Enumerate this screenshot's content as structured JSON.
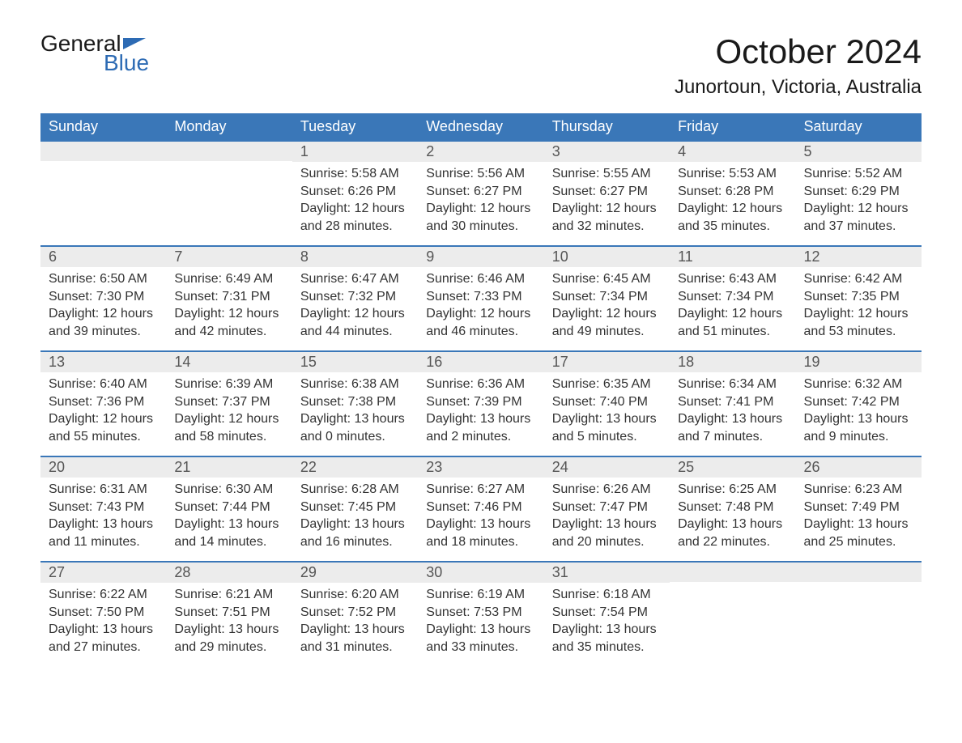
{
  "logo": {
    "line1": "General",
    "line2": "Blue"
  },
  "title": "October 2024",
  "location": "Junortoun, Victoria, Australia",
  "colors": {
    "header_bg": "#3a77b8",
    "header_text": "#ffffff",
    "daynum_bg": "#ececec",
    "row_border": "#3a77b8",
    "body_text": "#333333",
    "logo_blue": "#2d6bb4"
  },
  "weekdays": [
    "Sunday",
    "Monday",
    "Tuesday",
    "Wednesday",
    "Thursday",
    "Friday",
    "Saturday"
  ],
  "leading_blanks": 2,
  "days": [
    {
      "n": 1,
      "sunrise": "5:58 AM",
      "sunset": "6:26 PM",
      "daylight": "12 hours and 28 minutes."
    },
    {
      "n": 2,
      "sunrise": "5:56 AM",
      "sunset": "6:27 PM",
      "daylight": "12 hours and 30 minutes."
    },
    {
      "n": 3,
      "sunrise": "5:55 AM",
      "sunset": "6:27 PM",
      "daylight": "12 hours and 32 minutes."
    },
    {
      "n": 4,
      "sunrise": "5:53 AM",
      "sunset": "6:28 PM",
      "daylight": "12 hours and 35 minutes."
    },
    {
      "n": 5,
      "sunrise": "5:52 AM",
      "sunset": "6:29 PM",
      "daylight": "12 hours and 37 minutes."
    },
    {
      "n": 6,
      "sunrise": "6:50 AM",
      "sunset": "7:30 PM",
      "daylight": "12 hours and 39 minutes."
    },
    {
      "n": 7,
      "sunrise": "6:49 AM",
      "sunset": "7:31 PM",
      "daylight": "12 hours and 42 minutes."
    },
    {
      "n": 8,
      "sunrise": "6:47 AM",
      "sunset": "7:32 PM",
      "daylight": "12 hours and 44 minutes."
    },
    {
      "n": 9,
      "sunrise": "6:46 AM",
      "sunset": "7:33 PM",
      "daylight": "12 hours and 46 minutes."
    },
    {
      "n": 10,
      "sunrise": "6:45 AM",
      "sunset": "7:34 PM",
      "daylight": "12 hours and 49 minutes."
    },
    {
      "n": 11,
      "sunrise": "6:43 AM",
      "sunset": "7:34 PM",
      "daylight": "12 hours and 51 minutes."
    },
    {
      "n": 12,
      "sunrise": "6:42 AM",
      "sunset": "7:35 PM",
      "daylight": "12 hours and 53 minutes."
    },
    {
      "n": 13,
      "sunrise": "6:40 AM",
      "sunset": "7:36 PM",
      "daylight": "12 hours and 55 minutes."
    },
    {
      "n": 14,
      "sunrise": "6:39 AM",
      "sunset": "7:37 PM",
      "daylight": "12 hours and 58 minutes."
    },
    {
      "n": 15,
      "sunrise": "6:38 AM",
      "sunset": "7:38 PM",
      "daylight": "13 hours and 0 minutes."
    },
    {
      "n": 16,
      "sunrise": "6:36 AM",
      "sunset": "7:39 PM",
      "daylight": "13 hours and 2 minutes."
    },
    {
      "n": 17,
      "sunrise": "6:35 AM",
      "sunset": "7:40 PM",
      "daylight": "13 hours and 5 minutes."
    },
    {
      "n": 18,
      "sunrise": "6:34 AM",
      "sunset": "7:41 PM",
      "daylight": "13 hours and 7 minutes."
    },
    {
      "n": 19,
      "sunrise": "6:32 AM",
      "sunset": "7:42 PM",
      "daylight": "13 hours and 9 minutes."
    },
    {
      "n": 20,
      "sunrise": "6:31 AM",
      "sunset": "7:43 PM",
      "daylight": "13 hours and 11 minutes."
    },
    {
      "n": 21,
      "sunrise": "6:30 AM",
      "sunset": "7:44 PM",
      "daylight": "13 hours and 14 minutes."
    },
    {
      "n": 22,
      "sunrise": "6:28 AM",
      "sunset": "7:45 PM",
      "daylight": "13 hours and 16 minutes."
    },
    {
      "n": 23,
      "sunrise": "6:27 AM",
      "sunset": "7:46 PM",
      "daylight": "13 hours and 18 minutes."
    },
    {
      "n": 24,
      "sunrise": "6:26 AM",
      "sunset": "7:47 PM",
      "daylight": "13 hours and 20 minutes."
    },
    {
      "n": 25,
      "sunrise": "6:25 AM",
      "sunset": "7:48 PM",
      "daylight": "13 hours and 22 minutes."
    },
    {
      "n": 26,
      "sunrise": "6:23 AM",
      "sunset": "7:49 PM",
      "daylight": "13 hours and 25 minutes."
    },
    {
      "n": 27,
      "sunrise": "6:22 AM",
      "sunset": "7:50 PM",
      "daylight": "13 hours and 27 minutes."
    },
    {
      "n": 28,
      "sunrise": "6:21 AM",
      "sunset": "7:51 PM",
      "daylight": "13 hours and 29 minutes."
    },
    {
      "n": 29,
      "sunrise": "6:20 AM",
      "sunset": "7:52 PM",
      "daylight": "13 hours and 31 minutes."
    },
    {
      "n": 30,
      "sunrise": "6:19 AM",
      "sunset": "7:53 PM",
      "daylight": "13 hours and 33 minutes."
    },
    {
      "n": 31,
      "sunrise": "6:18 AM",
      "sunset": "7:54 PM",
      "daylight": "13 hours and 35 minutes."
    }
  ],
  "labels": {
    "sunrise": "Sunrise:",
    "sunset": "Sunset:",
    "daylight": "Daylight:"
  }
}
